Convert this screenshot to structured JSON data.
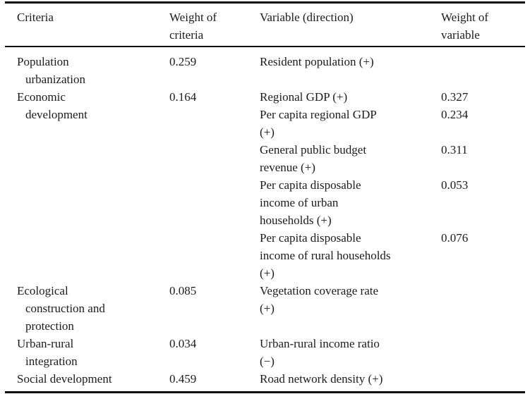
{
  "table": {
    "headers": {
      "criteria": "Criteria",
      "weight_of_criteria": "Weight of\ncriteria",
      "variable": "Variable (direction)",
      "weight_of_variable": "Weight of\nvariable"
    },
    "rows": [
      {
        "criteria": "Population\nurbanization",
        "weight": "0.259",
        "variables": [
          {
            "label": "Resident population (+)",
            "weight": ""
          }
        ]
      },
      {
        "criteria": "Economic\ndevelopment",
        "weight": "0.164",
        "variables": [
          {
            "label": "Regional GDP (+)",
            "weight": "0.327"
          },
          {
            "label": "Per capita regional GDP\n(+)",
            "weight": "0.234"
          },
          {
            "label": "General public budget\nrevenue (+)",
            "weight": "0.311"
          },
          {
            "label": "Per capita disposable\nincome of urban\nhouseholds (+)",
            "weight": "0.053"
          },
          {
            "label": "Per capita disposable\nincome of rural households\n(+)",
            "weight": "0.076"
          }
        ]
      },
      {
        "criteria": "Ecological\nconstruction and\nprotection",
        "weight": "0.085",
        "variables": [
          {
            "label": "Vegetation coverage rate\n(+)",
            "weight": ""
          }
        ]
      },
      {
        "criteria": "Urban-rural\nintegration",
        "weight": "0.034",
        "variables": [
          {
            "label": "Urban-rural income ratio\n(−)",
            "weight": ""
          }
        ]
      },
      {
        "criteria": "Social development",
        "weight": "0.459",
        "variables": [
          {
            "label": "Road network density (+)",
            "weight": ""
          }
        ]
      }
    ]
  }
}
